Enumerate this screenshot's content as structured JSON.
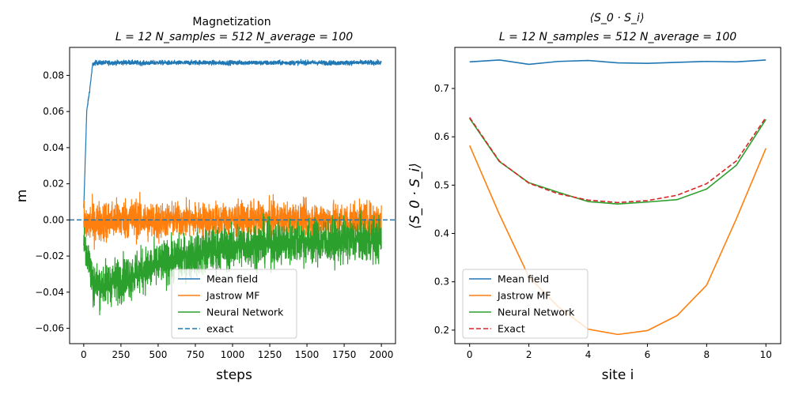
{
  "chart_data": [
    {
      "type": "line",
      "title": "Magnetization",
      "subtitle": "L = 12 N_samples = 512 N_average = 100",
      "xlabel": "steps",
      "ylabel": "m",
      "xlim": [
        -95,
        2095
      ],
      "ylim": [
        -0.0685,
        0.0955
      ],
      "xticks": [
        0,
        250,
        500,
        750,
        1000,
        1250,
        1500,
        1750,
        2000
      ],
      "xtick_labels": [
        "0",
        "250",
        "500",
        "750",
        "1000",
        "1250",
        "1500",
        "1750",
        "2000"
      ],
      "yticks": [
        -0.06,
        -0.04,
        -0.02,
        0.0,
        0.02,
        0.04,
        0.06,
        0.08
      ],
      "ytick_labels": [
        "−0.06",
        "−0.04",
        "−0.02",
        "0.00",
        "0.02",
        "0.04",
        "0.06",
        "0.08"
      ],
      "grid": false,
      "legend_position": "lower-center",
      "series": [
        {
          "name": "Mean field",
          "color": "#1f77b4",
          "style": "solid",
          "x": [
            0,
            20,
            40,
            60,
            80,
            100,
            200,
            300,
            400,
            500,
            600,
            700,
            800,
            900,
            1000,
            1100,
            1200,
            1300,
            1400,
            1500,
            1600,
            1700,
            1800,
            1900,
            2000
          ],
          "y": [
            0.006,
            0.06,
            0.072,
            0.086,
            0.087,
            0.087,
            0.087,
            0.0872,
            0.0868,
            0.0871,
            0.0869,
            0.087,
            0.0872,
            0.0869,
            0.087,
            0.0871,
            0.0869,
            0.087,
            0.087,
            0.0871,
            0.087,
            0.0869,
            0.087,
            0.0871,
            0.087
          ],
          "noise": 0.0012
        },
        {
          "name": "Jastrow MF",
          "color": "#ff7f0e",
          "style": "solid",
          "x": [
            0,
            100,
            200,
            300,
            400,
            500,
            550,
            600,
            700,
            800,
            900,
            1000,
            1100,
            1200,
            1300,
            1400,
            1500,
            1600,
            1700,
            1800,
            1900,
            2000
          ],
          "y": [
            -0.002,
            -0.001,
            0.0,
            0.001,
            0.0,
            -0.001,
            0.0,
            0.0,
            0.0,
            0.0,
            0.0,
            0.0,
            0.0,
            0.0,
            0.0,
            0.0,
            0.0,
            0.0,
            0.0,
            0.0,
            0.0,
            0.0
          ],
          "noise": 0.011
        },
        {
          "name": "Neural Network",
          "color": "#2ca02c",
          "style": "solid",
          "x": [
            0,
            30,
            60,
            100,
            200,
            300,
            400,
            500,
            600,
            700,
            800,
            900,
            1000,
            1100,
            1200,
            1300,
            1400,
            1500,
            1600,
            1700,
            1800,
            1900,
            2000
          ],
          "y": [
            -0.01,
            -0.02,
            -0.035,
            -0.036,
            -0.034,
            -0.031,
            -0.028,
            -0.025,
            -0.022,
            -0.02,
            -0.018,
            -0.016,
            -0.015,
            -0.014,
            -0.013,
            -0.013,
            -0.012,
            -0.012,
            -0.012,
            -0.012,
            -0.011,
            -0.011,
            -0.011
          ],
          "noise": 0.012
        },
        {
          "name": "exact",
          "color": "#1f77b4",
          "style": "dashed",
          "x": [
            -95,
            2095
          ],
          "y": [
            0.0,
            0.0
          ],
          "noise": 0
        }
      ]
    },
    {
      "type": "line",
      "title": "⟨S_0 · S_i⟩",
      "subtitle": "L = 12  N_samples = 512 N_average = 100",
      "xlabel": "site i",
      "ylabel": "⟨S_0 · S_i⟩",
      "xlim": [
        -0.5,
        10.5
      ],
      "ylim": [
        0.172,
        0.785
      ],
      "xticks": [
        0,
        2,
        4,
        6,
        8,
        10
      ],
      "xtick_labels": [
        "0",
        "2",
        "4",
        "6",
        "8",
        "10"
      ],
      "yticks": [
        0.2,
        0.3,
        0.4,
        0.5,
        0.6,
        0.7
      ],
      "ytick_labels": [
        "0.2",
        "0.3",
        "0.4",
        "0.5",
        "0.6",
        "0.7"
      ],
      "grid": false,
      "legend_position": "lower-left",
      "series": [
        {
          "name": "Mean field",
          "color": "#1f77b4",
          "style": "solid",
          "x": [
            0,
            1,
            2,
            3,
            4,
            5,
            6,
            7,
            8,
            9,
            10
          ],
          "y": [
            0.755,
            0.759,
            0.75,
            0.756,
            0.758,
            0.753,
            0.752,
            0.754,
            0.756,
            0.755,
            0.759
          ]
        },
        {
          "name": "Jastrow MF",
          "color": "#ff7f0e",
          "style": "solid",
          "x": [
            0,
            1,
            2,
            3,
            4,
            5,
            6,
            7,
            8,
            9,
            10
          ],
          "y": [
            0.582,
            0.44,
            0.31,
            0.248,
            0.202,
            0.191,
            0.199,
            0.23,
            0.293,
            0.43,
            0.576
          ]
        },
        {
          "name": "Neural Network",
          "color": "#2ca02c",
          "style": "solid",
          "x": [
            0,
            1,
            2,
            3,
            4,
            5,
            6,
            7,
            8,
            9,
            10
          ],
          "y": [
            0.638,
            0.549,
            0.505,
            0.485,
            0.466,
            0.461,
            0.465,
            0.47,
            0.492,
            0.541,
            0.636
          ]
        },
        {
          "name": "Exact",
          "color": "#d62728",
          "style": "dashed",
          "x": [
            0,
            1,
            2,
            3,
            4,
            5,
            6,
            7,
            8,
            9,
            10
          ],
          "y": [
            0.64,
            0.55,
            0.504,
            0.482,
            0.469,
            0.464,
            0.468,
            0.479,
            0.503,
            0.55,
            0.64
          ]
        }
      ]
    }
  ]
}
